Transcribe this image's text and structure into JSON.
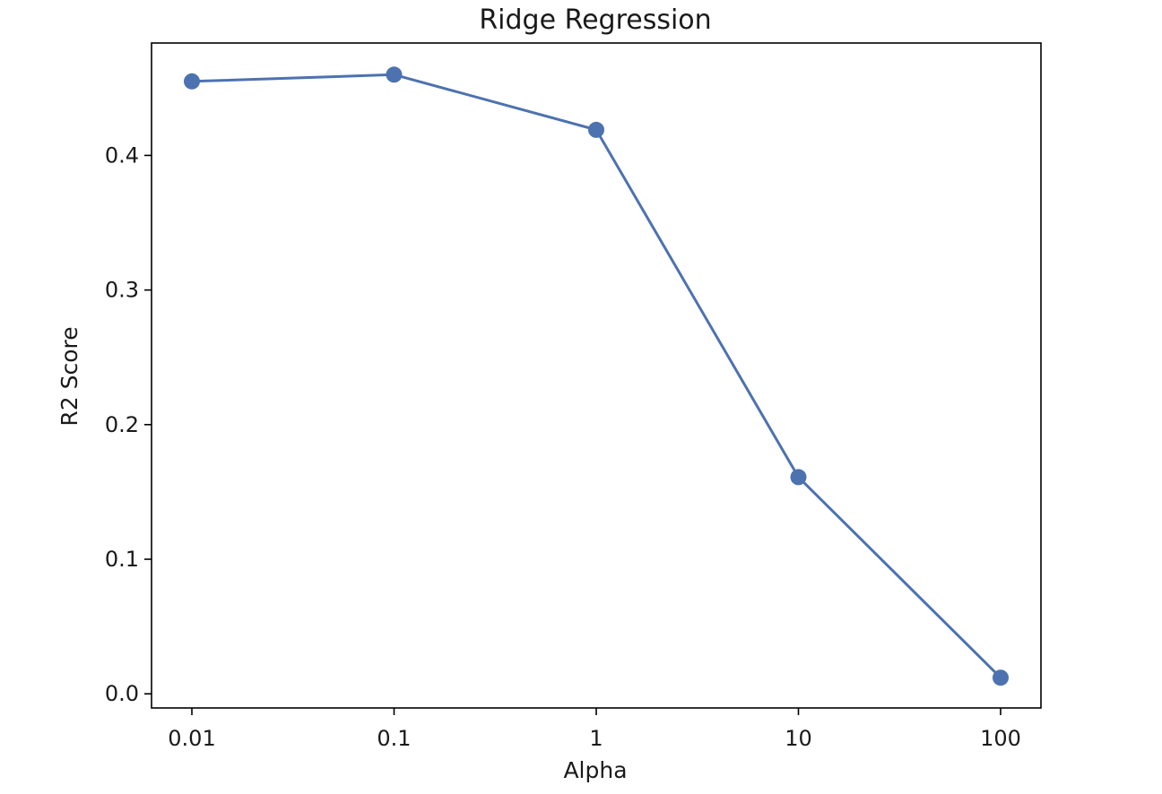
{
  "chart_data": {
    "type": "line",
    "title": "Ridge Regression",
    "xlabel": "Alpha",
    "ylabel": "R2 Score",
    "categories": [
      "0.01",
      "0.1",
      "1",
      "10",
      "100"
    ],
    "series": [
      {
        "values": [
          0.455,
          0.46,
          0.419,
          0.161,
          0.012
        ],
        "color": "#4c72b0",
        "marker": "circle"
      }
    ],
    "yticks": [
      0.0,
      0.1,
      0.2,
      0.3,
      0.4
    ],
    "ytick_labels": [
      "0.0",
      "0.1",
      "0.2",
      "0.3",
      "0.4"
    ],
    "ylim": [
      -0.0105,
      0.4835
    ],
    "grid": false,
    "legend": "none"
  }
}
